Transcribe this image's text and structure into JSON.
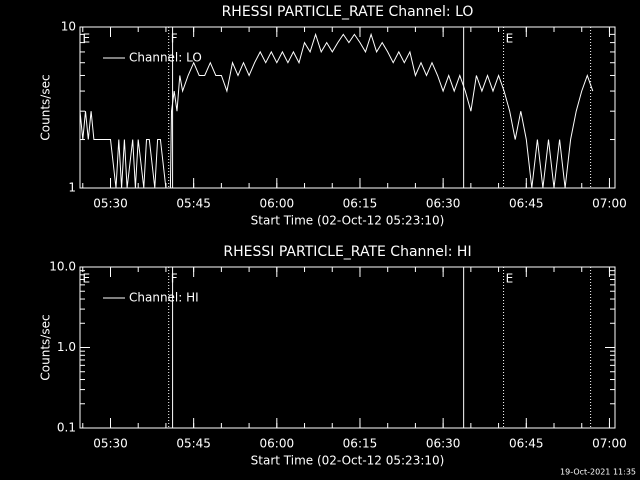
{
  "chart_data": [
    {
      "type": "line",
      "title": "RHESSI PARTICLE_RATE Channel: LO",
      "xlabel": "Start Time (02-Oct-12 05:23:10)",
      "ylabel": "Counts/sec",
      "log_y": true,
      "xlim": [
        324.5,
        421
      ],
      "ylim": [
        1,
        10
      ],
      "yticks": [
        1,
        10
      ],
      "xticks": [
        {
          "value": 330,
          "label": "05:30"
        },
        {
          "value": 345,
          "label": "05:45"
        },
        {
          "value": 360,
          "label": "06:00"
        },
        {
          "value": 375,
          "label": "06:15"
        },
        {
          "value": 390,
          "label": "06:30"
        },
        {
          "value": 405,
          "label": "06:45"
        },
        {
          "value": 420,
          "label": "07:00"
        }
      ],
      "legend": "upper left",
      "annotations": [
        {
          "x": 324.6,
          "label": "E",
          "style": "none"
        },
        {
          "x": 340.5,
          "label": "F",
          "style": "dotted"
        },
        {
          "x": 341.2,
          "style": "solid"
        },
        {
          "x": 393.7,
          "style": "solid"
        },
        {
          "x": 400.9,
          "label": "E",
          "style": "dotted"
        },
        {
          "x": 416.6,
          "style": "dotted"
        }
      ],
      "series": [
        {
          "name": "Channel: LO",
          "color": "#ffffff",
          "x": [
            324.5,
            325,
            325.5,
            326,
            326.5,
            327,
            330,
            331,
            331.5,
            332,
            332.5,
            333,
            334,
            334.5,
            335,
            336,
            336.5,
            337,
            338,
            338.5,
            339,
            340,
            340.8,
            341,
            341.5,
            342,
            342.5,
            343,
            344,
            345,
            346,
            347,
            348,
            349,
            350,
            351,
            352,
            353,
            354,
            355,
            356,
            357,
            358,
            359,
            360,
            361,
            362,
            363,
            364,
            365,
            366,
            367,
            368,
            369,
            370,
            371,
            372,
            373,
            374,
            375,
            376,
            377,
            378,
            379,
            380,
            381,
            382,
            383,
            384,
            385,
            386,
            387,
            388,
            389,
            390,
            391,
            392,
            393,
            394,
            395,
            396,
            397,
            398,
            399,
            400,
            401,
            402,
            403,
            404,
            405,
            406,
            407,
            408,
            409,
            410,
            411,
            412,
            413,
            414,
            415,
            416,
            417
          ],
          "values": [
            3,
            2,
            3,
            2,
            3,
            2,
            2,
            1,
            2,
            1,
            2,
            1,
            2,
            1,
            2,
            1,
            2,
            2,
            1,
            2,
            2,
            1,
            1,
            3,
            4,
            3,
            5,
            4,
            5,
            6,
            5,
            5,
            6,
            5,
            5,
            4,
            6,
            5,
            6,
            5,
            6,
            7,
            6,
            7,
            6,
            7,
            6,
            7,
            6,
            8,
            7,
            9,
            7,
            8,
            7,
            8,
            9,
            8,
            9,
            8,
            7,
            9,
            7,
            8,
            7,
            6,
            7,
            6,
            7,
            5,
            6,
            5,
            6,
            5,
            4,
            5,
            4,
            5,
            4,
            3,
            5,
            4,
            5,
            4,
            5,
            4,
            3,
            2,
            3,
            2,
            1,
            2,
            1,
            2,
            1,
            2,
            1,
            2,
            3,
            4,
            5,
            4
          ]
        }
      ]
    },
    {
      "type": "line",
      "title": "RHESSI PARTICLE_RATE Channel: HI",
      "xlabel": "Start Time (02-Oct-12 05:23:10)",
      "ylabel": "Counts/sec",
      "log_y": true,
      "xlim": [
        324.5,
        421
      ],
      "ylim": [
        0.1,
        10
      ],
      "yticks": [
        {
          "value": 0.1,
          "label": "0.1"
        },
        {
          "value": 1,
          "label": "1.0"
        },
        {
          "value": 10,
          "label": "10.0"
        }
      ],
      "xticks": [
        {
          "value": 330,
          "label": "05:30"
        },
        {
          "value": 345,
          "label": "05:45"
        },
        {
          "value": 360,
          "label": "06:00"
        },
        {
          "value": 375,
          "label": "06:15"
        },
        {
          "value": 390,
          "label": "06:30"
        },
        {
          "value": 405,
          "label": "06:45"
        },
        {
          "value": 420,
          "label": "07:00"
        }
      ],
      "legend": "upper left",
      "annotations": [
        {
          "x": 324.6,
          "label": "E",
          "style": "none"
        },
        {
          "x": 340.5,
          "label": "F",
          "style": "dotted"
        },
        {
          "x": 341.2,
          "style": "solid"
        },
        {
          "x": 393.7,
          "style": "solid"
        },
        {
          "x": 400.9,
          "label": "E",
          "style": "dotted"
        },
        {
          "x": 416.6,
          "style": "dotted"
        }
      ],
      "series": [
        {
          "name": "Channel: HI",
          "color": "#ffffff",
          "x": [],
          "values": []
        }
      ]
    }
  ],
  "footer": "19-Oct-2021 11:35"
}
